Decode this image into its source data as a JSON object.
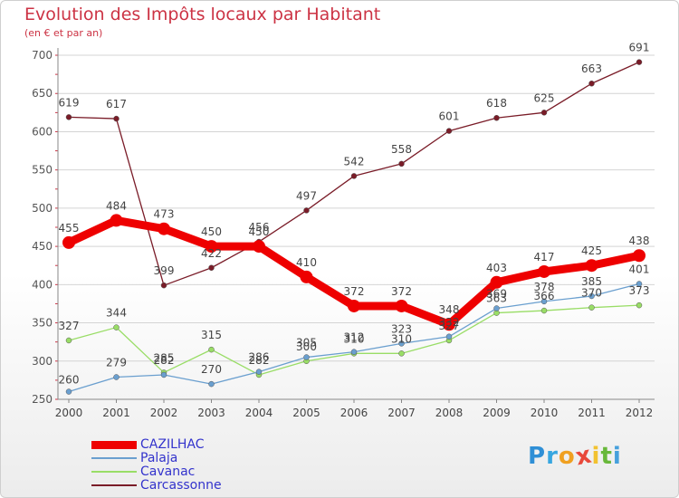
{
  "chart_data": {
    "type": "line",
    "title": "Evolution des Impôts locaux par Habitant",
    "subtitle": "(en € et par an)",
    "categories": [
      "2000",
      "2001",
      "2002",
      "2003",
      "2004",
      "2005",
      "2006",
      "2007",
      "2008",
      "2009",
      "2010",
      "2011",
      "2012"
    ],
    "ylim": [
      250,
      700
    ],
    "yticks": [
      250,
      300,
      350,
      400,
      450,
      500,
      550,
      600,
      650,
      700
    ],
    "series": [
      {
        "name": "CAZILHAC",
        "color": "#ee0000",
        "values": [
          455,
          484,
          473,
          450,
          450,
          410,
          372,
          372,
          348,
          403,
          417,
          425,
          438
        ]
      },
      {
        "name": "Palaja",
        "color": "#6a9fcf",
        "values": [
          260,
          279,
          282,
          270,
          286,
          305,
          312,
          323,
          332,
          369,
          378,
          385,
          401
        ]
      },
      {
        "name": "Cavanac",
        "color": "#99dd66",
        "values": [
          327,
          344,
          285,
          315,
          282,
          300,
          310,
          310,
          327,
          363,
          366,
          370,
          373
        ]
      },
      {
        "name": "Carcassonne",
        "color": "#7a1c28",
        "values": [
          619,
          617,
          399,
          422,
          456,
          497,
          542,
          558,
          601,
          618,
          625,
          663,
          691
        ]
      }
    ]
  },
  "brand": {
    "letters": [
      "P",
      "r",
      "o",
      "x",
      "i",
      "t",
      "i"
    ],
    "colors": [
      "#2f8fd6",
      "#37a6e0",
      "#f0a020",
      "#e8483a",
      "#f2c230",
      "#68b83a",
      "#46a0dc"
    ]
  }
}
